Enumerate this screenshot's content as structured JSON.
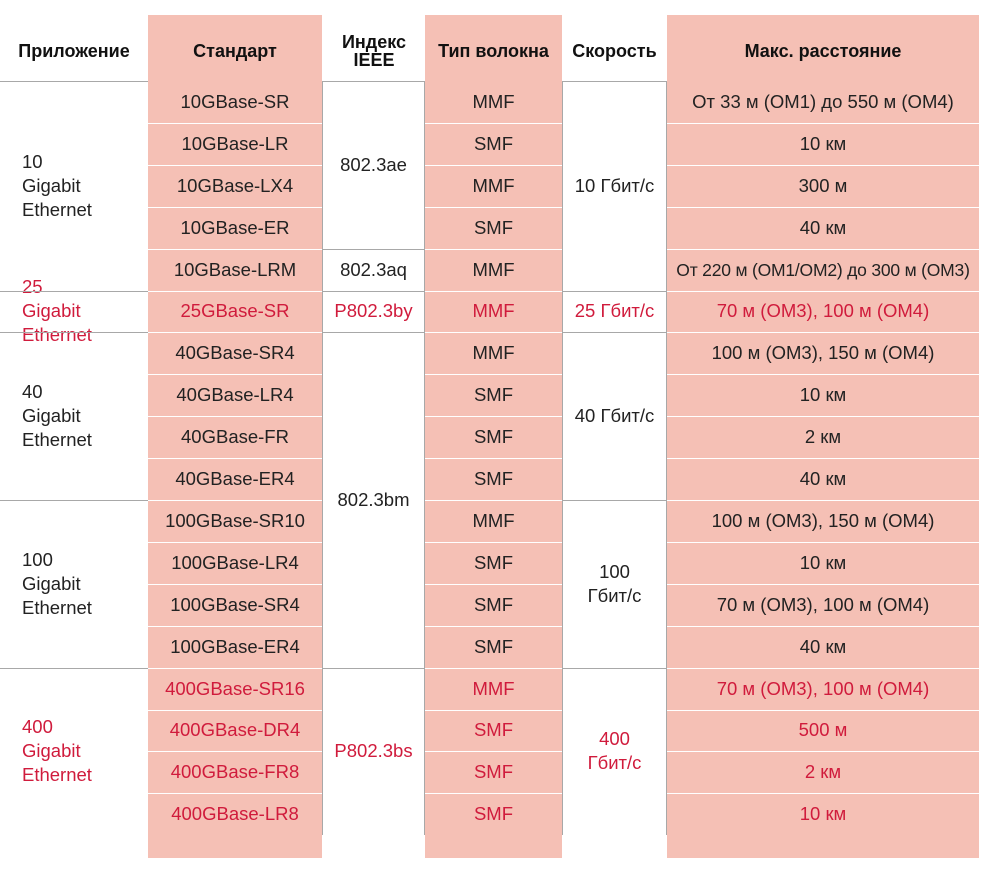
{
  "headers": {
    "application": "Приложение",
    "standard": "Стандарт",
    "ieee": "Индекс IEEE",
    "fiber": "Тип волокна",
    "speed": "Скорость",
    "distance": "Макс. расстояние"
  },
  "groups": [
    {
      "application": "10 Gigabit Ethernet",
      "speed": "10 Гбит/с",
      "highlight": false
    },
    {
      "application": "25 Gigabit Ethernet",
      "speed": "25 Гбит/с",
      "highlight": true
    },
    {
      "application": "40 Gigabit Ethernet",
      "speed": "40 Гбит/с",
      "highlight": false
    },
    {
      "application": "100 Gigabit Ethernet",
      "speed": "100 Гбит/с",
      "highlight": false
    },
    {
      "application": "400 Gigabit Ethernet",
      "speed": "400 Гбит/с",
      "highlight": true
    }
  ],
  "ieee": [
    "802.3ae",
    "802.3aq",
    "P802.3by",
    "802.3bm",
    "P802.3bs"
  ],
  "rows": [
    {
      "standard": "10GBase-SR",
      "fiber": "MMF",
      "distance": "От 33 м (OM1) до 550 м (OM4)"
    },
    {
      "standard": "10GBase-LR",
      "fiber": "SMF",
      "distance": "10 км"
    },
    {
      "standard": "10GBase-LX4",
      "fiber": "MMF",
      "distance": "300 м"
    },
    {
      "standard": "10GBase-ER",
      "fiber": "SMF",
      "distance": "40 км"
    },
    {
      "standard": "10GBase-LRM",
      "fiber": "MMF",
      "distance": "От 220 м (OM1/OM2) до 300 м (OM3)"
    },
    {
      "standard": "25GBase-SR",
      "fiber": "MMF",
      "distance": "70 м (OM3), 100 м (OM4)"
    },
    {
      "standard": "40GBase-SR4",
      "fiber": "MMF",
      "distance": "100 м (OM3), 150 м (OM4)"
    },
    {
      "standard": "40GBase-LR4",
      "fiber": "SMF",
      "distance": "10 км"
    },
    {
      "standard": "40GBase-FR",
      "fiber": "SMF",
      "distance": "2 км"
    },
    {
      "standard": "40GBase-ER4",
      "fiber": "SMF",
      "distance": "40 км"
    },
    {
      "standard": "100GBase-SR10",
      "fiber": "MMF",
      "distance": "100 м (OM3), 150 м (OM4)"
    },
    {
      "standard": "100GBase-LR4",
      "fiber": "SMF",
      "distance": "10 км"
    },
    {
      "standard": "100GBase-SR4",
      "fiber": "SMF",
      "distance": "70 м (OM3), 100 м (OM4)"
    },
    {
      "standard": "100GBase-ER4",
      "fiber": "SMF",
      "distance": "40 км"
    },
    {
      "standard": "400GBase-SR16",
      "fiber": "MMF",
      "distance": "70 м (OM3), 100 м (OM4)"
    },
    {
      "standard": "400GBase-DR4",
      "fiber": "SMF",
      "distance": "500 м"
    },
    {
      "standard": "400GBase-FR8",
      "fiber": "SMF",
      "distance": "2 км"
    },
    {
      "standard": "400GBase-LR8",
      "fiber": "SMF",
      "distance": "10 км"
    }
  ]
}
